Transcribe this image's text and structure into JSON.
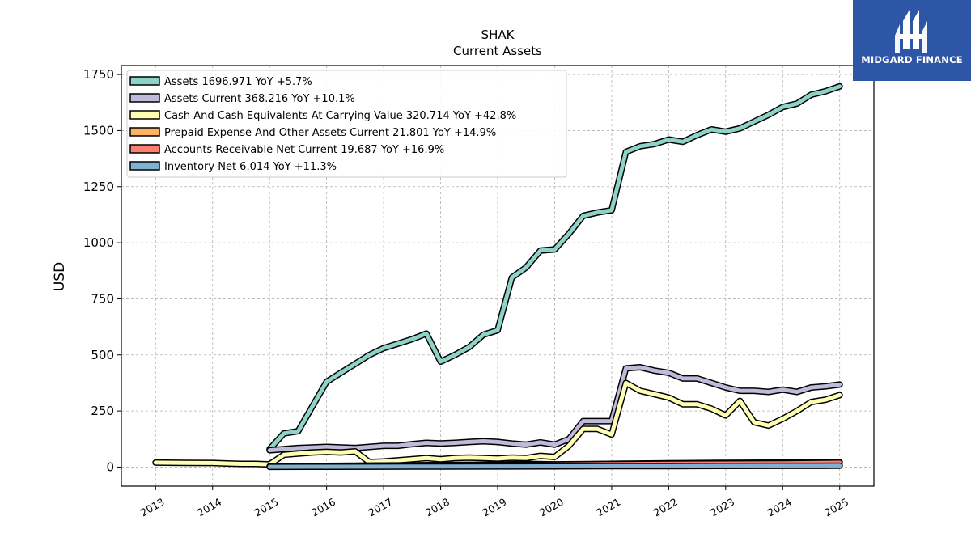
{
  "chart_data": {
    "type": "line",
    "title": "SHAK",
    "subtitle": "Current  Assets",
    "ylabel": "USD",
    "xlabel": "",
    "ylim": [
      -85,
      1790
    ],
    "xlim": [
      2012.4,
      2025.6
    ],
    "yticks": [
      0,
      250,
      500,
      750,
      1000,
      1250,
      1500,
      1750
    ],
    "xticks": [
      "2013",
      "2014",
      "2015",
      "2016",
      "2017",
      "2018",
      "2019",
      "2020",
      "2021",
      "2022",
      "2023",
      "2024",
      "2025"
    ],
    "grid": true,
    "legend_position": "top-left",
    "series": [
      {
        "name": "Assets  1696.971 YoY +5.7%",
        "color": "#8dd3c7",
        "points": [
          [
            2015.0,
            80
          ],
          [
            2015.25,
            150
          ],
          [
            2015.5,
            160
          ],
          [
            2015.75,
            270
          ],
          [
            2016.0,
            380
          ],
          [
            2016.25,
            420
          ],
          [
            2016.5,
            460
          ],
          [
            2016.75,
            500
          ],
          [
            2017.0,
            530
          ],
          [
            2017.25,
            550
          ],
          [
            2017.5,
            570
          ],
          [
            2017.75,
            595
          ],
          [
            2018.0,
            470
          ],
          [
            2018.25,
            500
          ],
          [
            2018.5,
            535
          ],
          [
            2018.75,
            590
          ],
          [
            2019.0,
            610
          ],
          [
            2019.25,
            845
          ],
          [
            2019.5,
            890
          ],
          [
            2019.75,
            965
          ],
          [
            2020.0,
            970
          ],
          [
            2020.25,
            1040
          ],
          [
            2020.5,
            1120
          ],
          [
            2020.75,
            1135
          ],
          [
            2021.0,
            1145
          ],
          [
            2021.25,
            1405
          ],
          [
            2021.5,
            1430
          ],
          [
            2021.75,
            1440
          ],
          [
            2022.0,
            1460
          ],
          [
            2022.25,
            1450
          ],
          [
            2022.5,
            1480
          ],
          [
            2022.75,
            1505
          ],
          [
            2023.0,
            1495
          ],
          [
            2023.25,
            1510
          ],
          [
            2023.5,
            1540
          ],
          [
            2023.75,
            1570
          ],
          [
            2024.0,
            1605
          ],
          [
            2024.25,
            1620
          ],
          [
            2024.5,
            1660
          ],
          [
            2024.75,
            1675
          ],
          [
            2025.0,
            1697
          ]
        ]
      },
      {
        "name": "Assets Current  368.216 YoY +10.1%",
        "color": "#bebada",
        "points": [
          [
            2015.0,
            75
          ],
          [
            2015.5,
            85
          ],
          [
            2016.0,
            90
          ],
          [
            2016.5,
            85
          ],
          [
            2017.0,
            95
          ],
          [
            2017.25,
            95
          ],
          [
            2017.5,
            102
          ],
          [
            2017.75,
            108
          ],
          [
            2018.0,
            105
          ],
          [
            2018.25,
            108
          ],
          [
            2018.5,
            112
          ],
          [
            2018.75,
            115
          ],
          [
            2019.0,
            112
          ],
          [
            2019.25,
            105
          ],
          [
            2019.5,
            100
          ],
          [
            2019.75,
            110
          ],
          [
            2020.0,
            100
          ],
          [
            2020.25,
            125
          ],
          [
            2020.5,
            205
          ],
          [
            2020.75,
            205
          ],
          [
            2021.0,
            205
          ],
          [
            2021.25,
            440
          ],
          [
            2021.5,
            445
          ],
          [
            2021.75,
            430
          ],
          [
            2022.0,
            420
          ],
          [
            2022.25,
            395
          ],
          [
            2022.5,
            395
          ],
          [
            2022.75,
            375
          ],
          [
            2023.0,
            355
          ],
          [
            2023.25,
            340
          ],
          [
            2023.5,
            340
          ],
          [
            2023.75,
            335
          ],
          [
            2024.0,
            345
          ],
          [
            2024.25,
            335
          ],
          [
            2024.5,
            355
          ],
          [
            2024.75,
            360
          ],
          [
            2025.0,
            368
          ]
        ]
      },
      {
        "name": "Cash And Cash Equivalents At Carrying Value  320.714 YoY +42.8%",
        "color": "#ffffb3",
        "points": [
          [
            2013.0,
            20
          ],
          [
            2013.5,
            19
          ],
          [
            2014.0,
            18
          ],
          [
            2014.25,
            16
          ],
          [
            2014.5,
            14
          ],
          [
            2014.75,
            14
          ],
          [
            2015.0,
            12
          ],
          [
            2015.25,
            55
          ],
          [
            2015.5,
            60
          ],
          [
            2015.75,
            65
          ],
          [
            2016.0,
            68
          ],
          [
            2016.25,
            65
          ],
          [
            2016.5,
            70
          ],
          [
            2016.75,
            22
          ],
          [
            2017.0,
            25
          ],
          [
            2017.5,
            35
          ],
          [
            2017.75,
            40
          ],
          [
            2018.0,
            35
          ],
          [
            2018.25,
            40
          ],
          [
            2018.5,
            42
          ],
          [
            2018.75,
            40
          ],
          [
            2019.0,
            38
          ],
          [
            2019.25,
            42
          ],
          [
            2019.5,
            40
          ],
          [
            2019.75,
            50
          ],
          [
            2020.0,
            45
          ],
          [
            2020.25,
            95
          ],
          [
            2020.5,
            170
          ],
          [
            2020.75,
            170
          ],
          [
            2021.0,
            145
          ],
          [
            2021.25,
            375
          ],
          [
            2021.5,
            340
          ],
          [
            2021.75,
            325
          ],
          [
            2022.0,
            310
          ],
          [
            2022.25,
            280
          ],
          [
            2022.5,
            280
          ],
          [
            2022.75,
            260
          ],
          [
            2023.0,
            230
          ],
          [
            2023.25,
            295
          ],
          [
            2023.5,
            200
          ],
          [
            2023.75,
            185
          ],
          [
            2024.0,
            215
          ],
          [
            2024.25,
            250
          ],
          [
            2024.5,
            290
          ],
          [
            2024.75,
            300
          ],
          [
            2025.0,
            321
          ]
        ]
      },
      {
        "name": "Prepaid Expense And Other Assets Current  21.801 YoY +14.9%",
        "color": "#fdb462",
        "points": [
          [
            2015.0,
            3
          ],
          [
            2016.0,
            5
          ],
          [
            2017.0,
            7
          ],
          [
            2018.0,
            9
          ],
          [
            2019.0,
            11
          ],
          [
            2019.5,
            14
          ],
          [
            2020.0,
            12
          ],
          [
            2021.0,
            14
          ],
          [
            2022.0,
            17
          ],
          [
            2023.0,
            19
          ],
          [
            2024.0,
            20
          ],
          [
            2025.0,
            21.8
          ]
        ]
      },
      {
        "name": "Accounts Receivable Net Current  19.687 YoY +16.9%",
        "color": "#fb8072",
        "points": [
          [
            2015.0,
            2
          ],
          [
            2016.0,
            4
          ],
          [
            2017.0,
            6
          ],
          [
            2018.0,
            8
          ],
          [
            2019.0,
            10
          ],
          [
            2020.0,
            11
          ],
          [
            2021.0,
            13
          ],
          [
            2022.0,
            15
          ],
          [
            2023.0,
            16
          ],
          [
            2024.0,
            17
          ],
          [
            2025.0,
            19.7
          ]
        ]
      },
      {
        "name": "Inventory Net  6.014 YoY +11.3%",
        "color": "#80b1d3",
        "points": [
          [
            2015.0,
            1
          ],
          [
            2016.0,
            1.5
          ],
          [
            2017.0,
            2
          ],
          [
            2018.0,
            2.5
          ],
          [
            2019.0,
            3
          ],
          [
            2020.0,
            3.5
          ],
          [
            2021.0,
            4
          ],
          [
            2022.0,
            4.5
          ],
          [
            2023.0,
            5
          ],
          [
            2024.0,
            5.4
          ],
          [
            2025.0,
            6.0
          ]
        ]
      }
    ]
  },
  "logo": {
    "text": "MIDGARD FINANCE",
    "color": "#2e56a6"
  }
}
